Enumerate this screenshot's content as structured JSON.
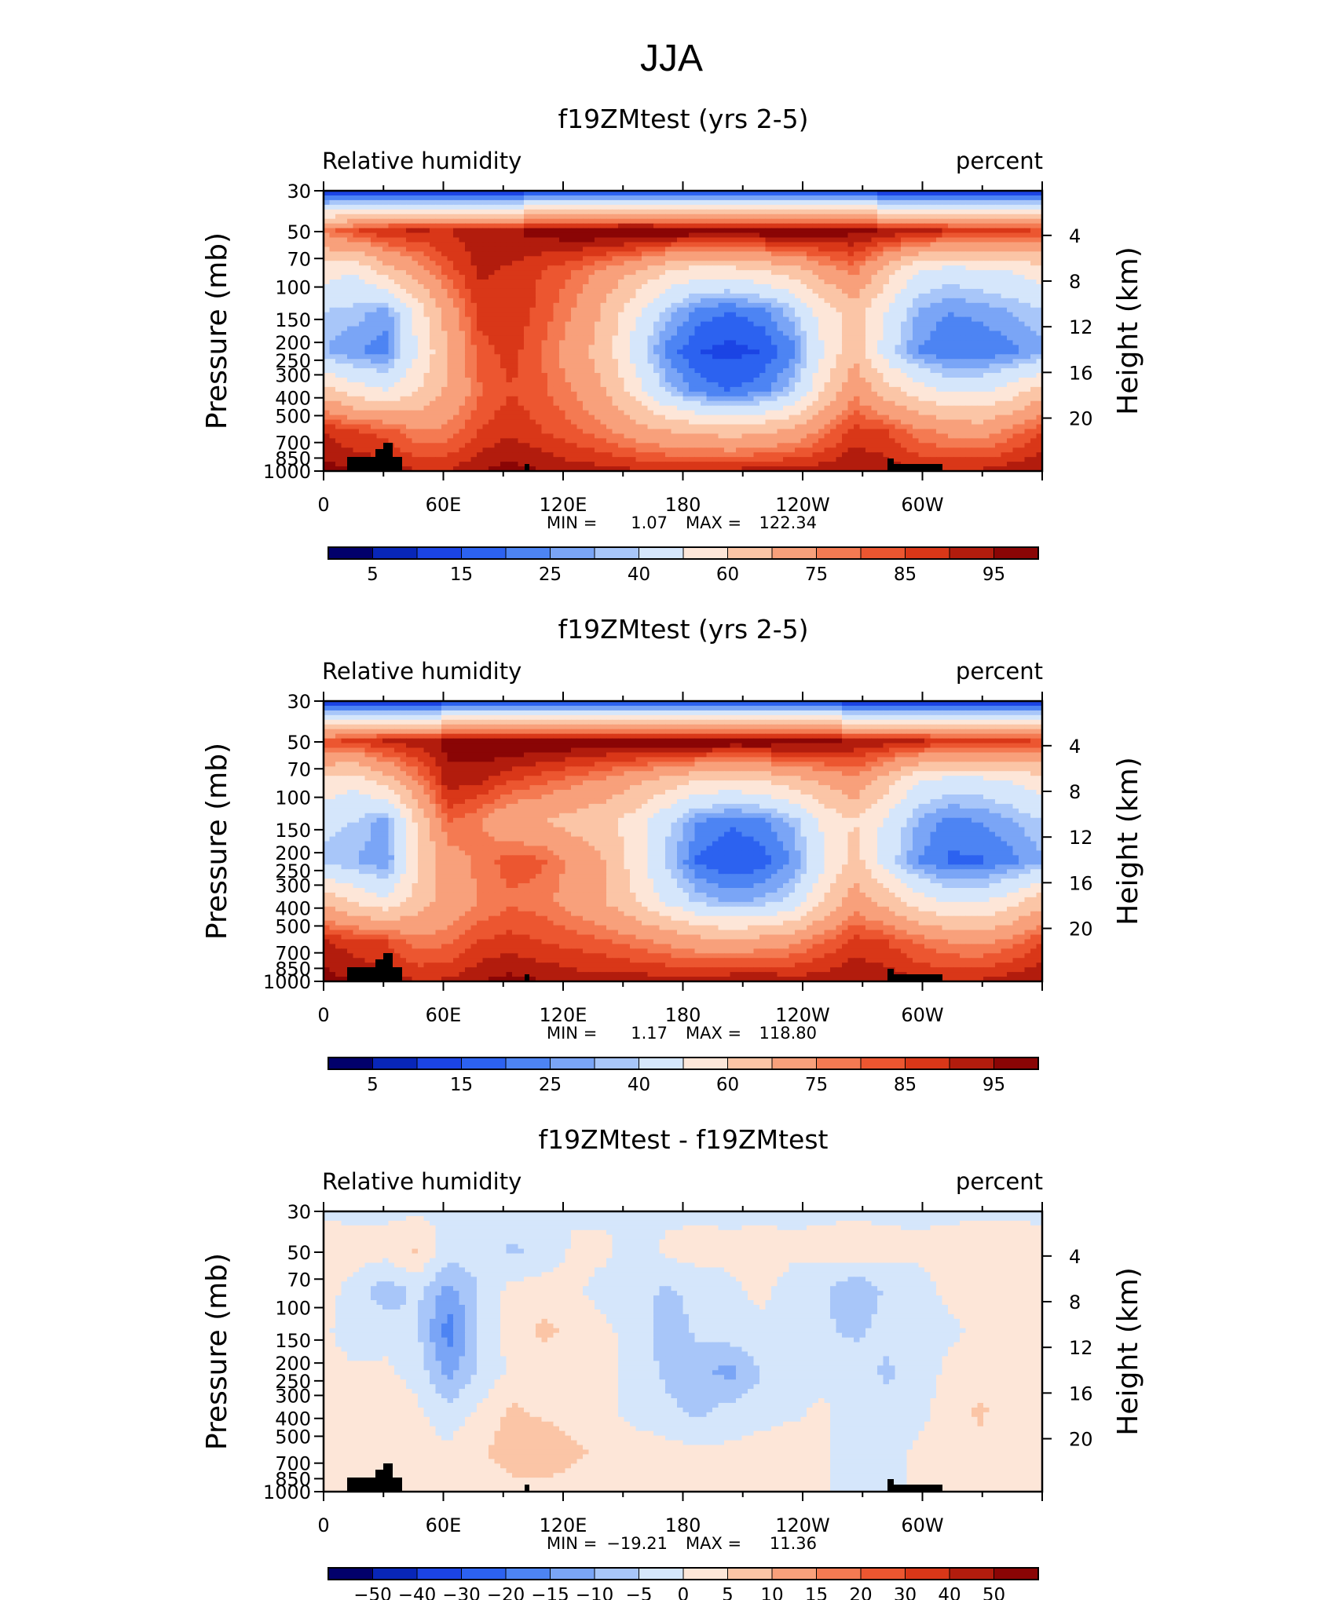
{
  "figure": {
    "title": "JJA"
  },
  "chart_data": [
    {
      "type": "heatmap",
      "title": "f19ZMtest (yrs 2-5)",
      "left_label": "Relative humidity",
      "right_label": "percent",
      "ylabel": "Pressure (mb)",
      "ylabel_right": "Height (km)",
      "x_ticks": [
        "0",
        "60E",
        "120E",
        "180",
        "120W",
        "60W"
      ],
      "y_ticks": [
        "30",
        "50",
        "70",
        "100",
        "150",
        "200",
        "250",
        "300",
        "400",
        "500",
        "700",
        "850",
        "1000"
      ],
      "height_ticks": [
        "20",
        "16",
        "12",
        "8",
        "4"
      ],
      "min_label": "MIN =",
      "min_value": "1.07",
      "max_label": "MAX =",
      "max_value": "122.34",
      "colorbar_labels": [
        "5",
        "15",
        "25",
        "40",
        "60",
        "75",
        "85",
        "95"
      ],
      "palette": "abs",
      "field": [
        [
          5,
          5,
          5,
          5,
          5,
          5,
          5,
          5,
          5,
          5,
          5,
          5,
          5,
          5,
          5,
          5,
          5,
          5,
          5,
          5,
          5,
          5,
          5,
          5
        ],
        [
          72,
          80,
          85,
          86,
          85,
          88,
          90,
          92,
          95,
          96,
          97,
          96,
          95,
          94,
          95,
          96,
          94,
          92,
          90,
          88,
          85,
          84,
          82,
          80
        ],
        [
          45,
          40,
          55,
          65,
          78,
          86,
          84,
          80,
          75,
          68,
          60,
          50,
          45,
          45,
          50,
          55,
          65,
          72,
          55,
          40,
          35,
          38,
          40,
          45
        ],
        [
          30,
          28,
          22,
          45,
          65,
          82,
          84,
          78,
          70,
          58,
          42,
          28,
          18,
          15,
          18,
          28,
          45,
          55,
          40,
          25,
          20,
          22,
          25,
          30
        ],
        [
          25,
          20,
          18,
          40,
          60,
          78,
          82,
          75,
          65,
          55,
          35,
          18,
          10,
          8,
          10,
          18,
          40,
          58,
          35,
          20,
          15,
          15,
          18,
          22
        ],
        [
          55,
          45,
          40,
          50,
          62,
          74,
          80,
          76,
          70,
          60,
          45,
          28,
          18,
          15,
          18,
          28,
          50,
          68,
          55,
          45,
          38,
          38,
          45,
          55
        ],
        [
          85,
          80,
          78,
          70,
          72,
          80,
          84,
          80,
          76,
          72,
          65,
          60,
          58,
          55,
          58,
          62,
          72,
          82,
          80,
          72,
          68,
          66,
          72,
          80
        ],
        [
          92,
          90,
          88,
          85,
          85,
          90,
          92,
          90,
          88,
          87,
          86,
          85,
          85,
          86,
          88,
          88,
          88,
          90,
          88,
          86,
          85,
          86,
          88,
          90
        ]
      ]
    },
    {
      "type": "heatmap",
      "title": "f19ZMtest (yrs 2-5)",
      "left_label": "Relative humidity",
      "right_label": "percent",
      "ylabel": "Pressure (mb)",
      "ylabel_right": "Height (km)",
      "x_ticks": [
        "0",
        "60E",
        "120E",
        "180",
        "120W",
        "60W"
      ],
      "y_ticks": [
        "30",
        "50",
        "70",
        "100",
        "150",
        "200",
        "250",
        "300",
        "400",
        "500",
        "700",
        "850",
        "1000"
      ],
      "height_ticks": [
        "20",
        "16",
        "12",
        "8",
        "4"
      ],
      "min_label": "MIN =",
      "min_value": "1.17",
      "max_label": "MAX =",
      "max_value": "118.80",
      "colorbar_labels": [
        "5",
        "15",
        "25",
        "40",
        "60",
        "75",
        "85",
        "95"
      ],
      "palette": "abs",
      "field": [
        [
          5,
          5,
          5,
          5,
          5,
          5,
          5,
          5,
          5,
          5,
          5,
          5,
          5,
          5,
          5,
          5,
          5,
          5,
          5,
          5,
          5,
          5,
          5,
          5
        ],
        [
          78,
          82,
          86,
          88,
          92,
          95,
          96,
          96,
          95,
          94,
          95,
          96,
          96,
          95,
          95,
          94,
          92,
          90,
          88,
          86,
          84,
          82,
          82,
          80
        ],
        [
          48,
          42,
          55,
          70,
          88,
          86,
          80,
          76,
          72,
          68,
          62,
          55,
          50,
          48,
          50,
          55,
          62,
          68,
          55,
          40,
          35,
          36,
          40,
          45
        ],
        [
          32,
          30,
          22,
          52,
          76,
          70,
          62,
          60,
          56,
          52,
          45,
          32,
          20,
          16,
          18,
          26,
          42,
          50,
          38,
          25,
          18,
          20,
          24,
          30
        ],
        [
          28,
          25,
          20,
          48,
          66,
          72,
          78,
          76,
          68,
          60,
          45,
          28,
          14,
          10,
          12,
          20,
          38,
          55,
          35,
          20,
          14,
          14,
          18,
          24
        ],
        [
          58,
          48,
          42,
          55,
          64,
          70,
          74,
          72,
          66,
          60,
          50,
          38,
          28,
          24,
          26,
          32,
          50,
          66,
          56,
          45,
          38,
          38,
          46,
          56
        ],
        [
          86,
          82,
          80,
          72,
          74,
          80,
          82,
          80,
          78,
          76,
          72,
          68,
          64,
          62,
          64,
          68,
          75,
          82,
          80,
          74,
          70,
          68,
          72,
          80
        ],
        [
          92,
          90,
          88,
          85,
          86,
          90,
          92,
          90,
          88,
          88,
          88,
          88,
          88,
          90,
          90,
          88,
          88,
          90,
          88,
          86,
          85,
          86,
          88,
          90
        ]
      ]
    },
    {
      "type": "heatmap",
      "title": "f19ZMtest - f19ZMtest",
      "left_label": "Relative humidity",
      "right_label": "percent",
      "ylabel": "Pressure (mb)",
      "ylabel_right": "Height (km)",
      "x_ticks": [
        "0",
        "60E",
        "120E",
        "180",
        "120W",
        "60W"
      ],
      "y_ticks": [
        "30",
        "50",
        "70",
        "100",
        "150",
        "200",
        "250",
        "300",
        "400",
        "500",
        "700",
        "850",
        "1000"
      ],
      "height_ticks": [
        "20",
        "16",
        "12",
        "8",
        "4"
      ],
      "min_label": "MIN =",
      "min_value": "−19.21",
      "max_label": "MAX =",
      "max_value": "11.36",
      "colorbar_labels": [
        "−50",
        "−40",
        "−30",
        "−20",
        "−15",
        "−10",
        "−5",
        "0",
        "5",
        "10",
        "15",
        "20",
        "30",
        "40",
        "50"
      ],
      "palette": "diff",
      "field": [
        [
          -1,
          -1,
          -1,
          -1,
          -1,
          -1,
          -1,
          -1,
          -1,
          -1,
          -1,
          -1,
          -1,
          -1,
          -1,
          -1,
          -1,
          -1,
          -1,
          -1,
          -1,
          -1,
          -1,
          -1
        ],
        [
          3,
          2,
          2,
          6,
          -3,
          -2,
          -6,
          -4,
          1,
          1,
          -2,
          1,
          2,
          1,
          2,
          1,
          2,
          3,
          2,
          1,
          2,
          3,
          3,
          2
        ],
        [
          2,
          -2,
          -8,
          -4,
          -12,
          -5,
          2,
          3,
          1,
          -2,
          -3,
          -6,
          -3,
          -1,
          1,
          -2,
          -4,
          -10,
          -4,
          -2,
          1,
          2,
          3,
          2
        ],
        [
          1,
          -3,
          -2,
          -4,
          -18,
          -4,
          2,
          6,
          4,
          1,
          -2,
          -8,
          -4,
          -2,
          -1,
          -2,
          -4,
          -6,
          -3,
          -2,
          -1,
          1,
          2,
          1
        ],
        [
          2,
          1,
          1,
          -2,
          -12,
          -4,
          1,
          2,
          3,
          1,
          -2,
          -6,
          -8,
          -12,
          -5,
          -3,
          -2,
          -2,
          -6,
          -3,
          1,
          2,
          4,
          2
        ],
        [
          3,
          4,
          3,
          1,
          -3,
          1,
          6,
          4,
          2,
          1,
          -2,
          -4,
          -6,
          -3,
          -2,
          -1,
          1,
          -4,
          -3,
          -2,
          3,
          6,
          2,
          1
        ],
        [
          1,
          2,
          3,
          2,
          1,
          4,
          8,
          10,
          6,
          4,
          3,
          2,
          1,
          1,
          2,
          3,
          1,
          -4,
          -3,
          1,
          2,
          3,
          2,
          1
        ],
        [
          1,
          1,
          2,
          1,
          1,
          2,
          3,
          3,
          2,
          2,
          2,
          1,
          1,
          1,
          1,
          2,
          1,
          -4,
          -2,
          1,
          1,
          1,
          1,
          1
        ]
      ]
    }
  ]
}
